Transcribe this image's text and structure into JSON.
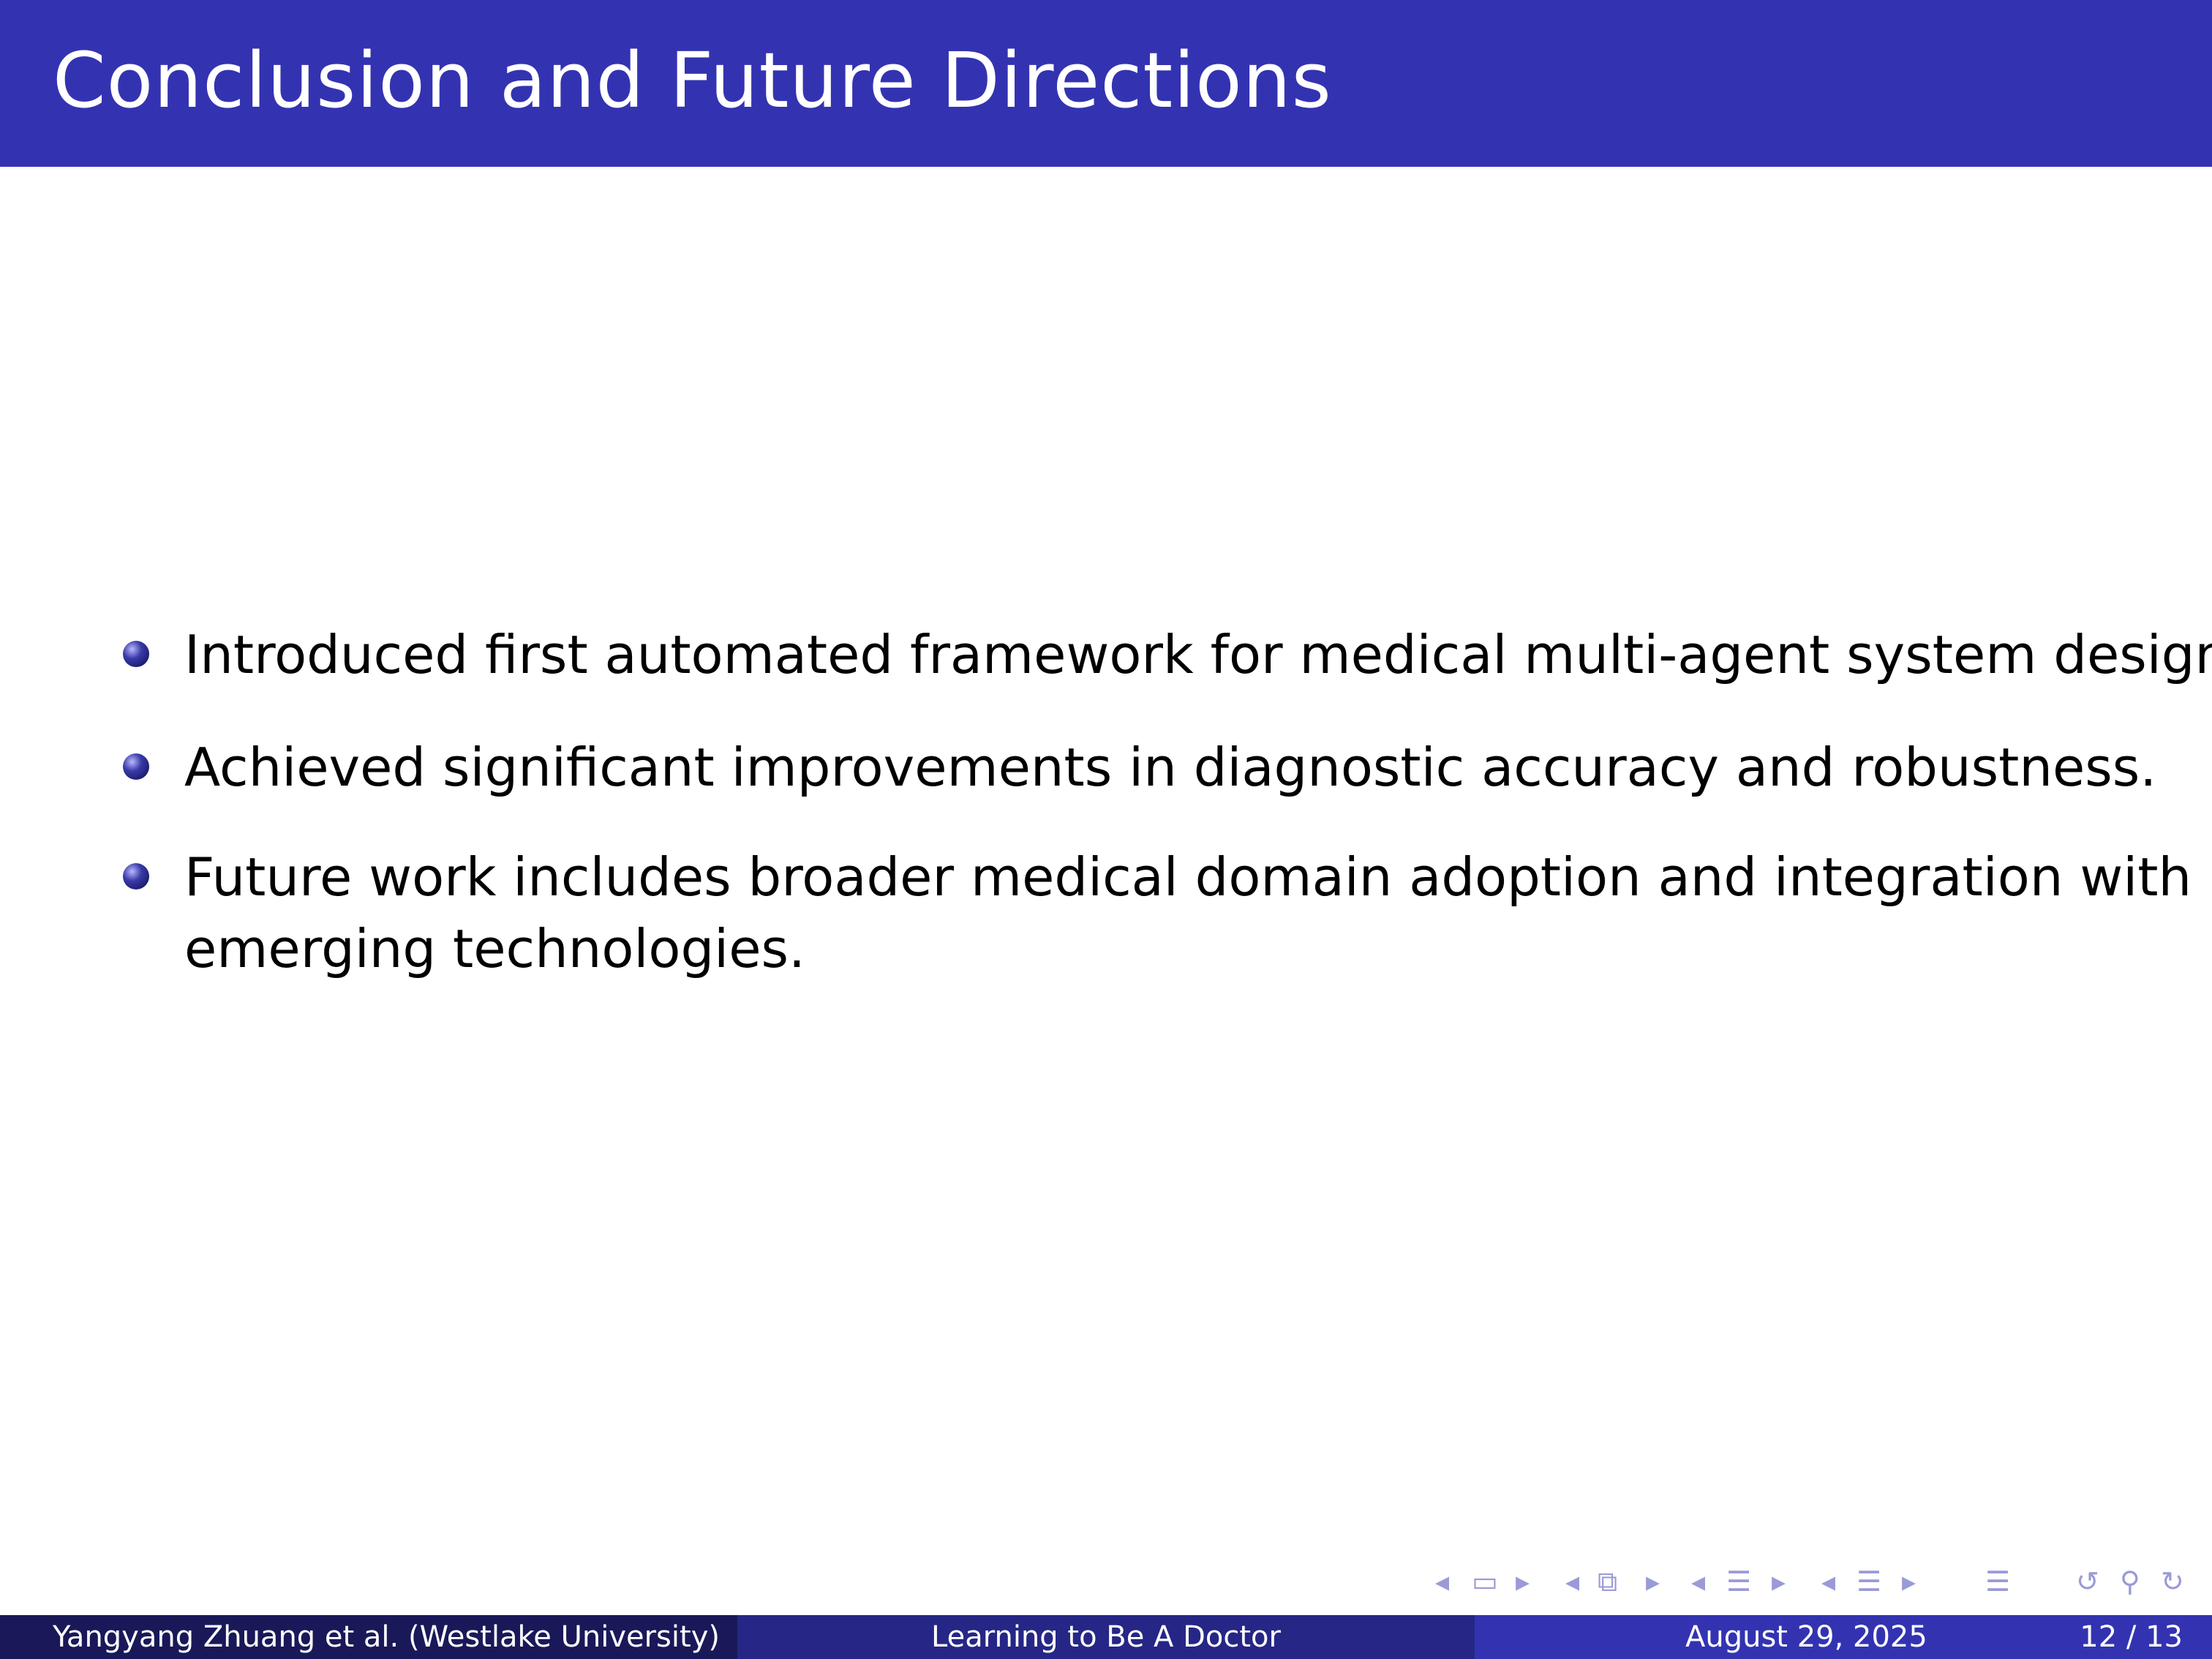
{
  "slide": {
    "title": "Conclusion and Future Directions",
    "items": [
      {
        "lines": [
          "Introduced first automated framework for medical multi-agent system design."
        ]
      },
      {
        "lines": [
          "Achieved significant improvements in diagnostic accuracy and robustness."
        ]
      },
      {
        "lines": [
          "Future work includes broader medical domain adoption and integration with",
          "emerging technologies."
        ]
      }
    ]
  },
  "nav": {
    "icons": [
      "arrow-left-icon",
      "frame-icon",
      "arrow-right-icon",
      "arrow-left-icon",
      "subsection-icon",
      "arrow-right-icon",
      "arrow-left-icon",
      "section-icon",
      "arrow-right-icon",
      "arrow-left-icon",
      "align-icon",
      "arrow-right-icon",
      "outline-icon",
      "back-icon",
      "search-icon",
      "forward-icon"
    ]
  },
  "footer": {
    "author": "Yangyang Zhuang et al.  (Westlake University)",
    "short_title": "Learning to Be A Doctor",
    "date": "August 29, 2025",
    "page": "12 / 13"
  },
  "colors": {
    "header_bg": "#3333b2",
    "footer_left": "#191959",
    "footer_mid": "#262686",
    "footer_right": "#3333b2",
    "nav_icons": "#9a9ad6"
  }
}
